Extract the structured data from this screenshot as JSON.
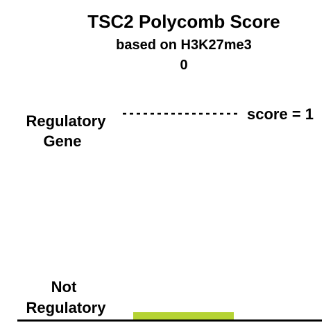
{
  "chart_data": {
    "type": "bar",
    "title": "TSC2 Polycomb Score",
    "subtitle": "based on H3K27me3",
    "categories": [
      ""
    ],
    "values": [
      0
    ],
    "value_label": "0",
    "ylim": [
      0,
      1
    ],
    "y_tick_labels": {
      "top": [
        "Regulatory",
        "Gene"
      ],
      "bottom": [
        "Not",
        "Regulatory"
      ]
    },
    "reference_line": {
      "value": 1,
      "label": "score = 1"
    },
    "colors": {
      "bar": "#b5d334",
      "axis": "#000000",
      "text": "#000000"
    }
  }
}
